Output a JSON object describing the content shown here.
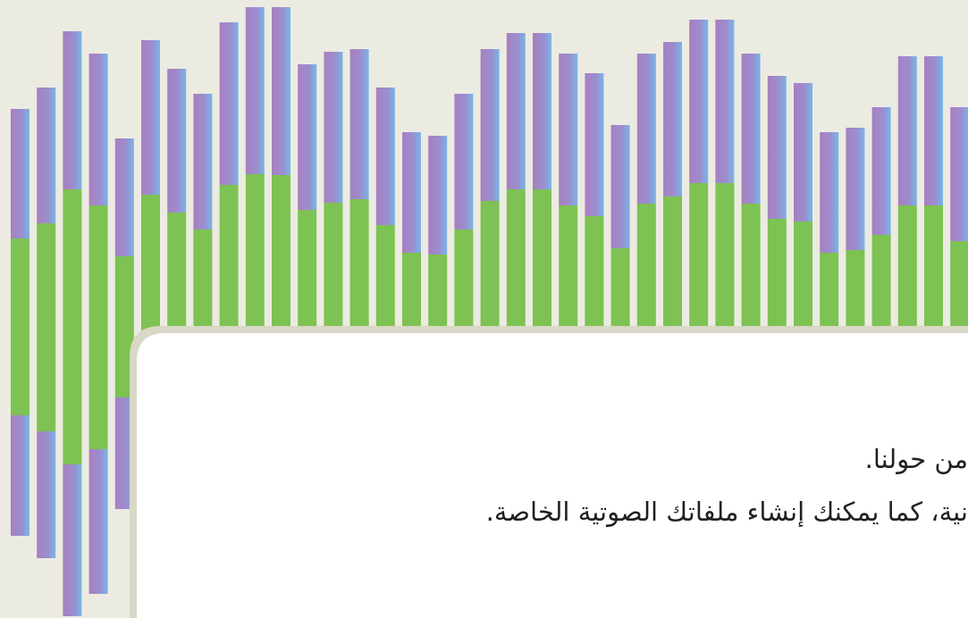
{
  "body": {
    "lines": [
      "من حولنا.",
      "نية، كما يمكنك إنشاء ملفاتك الصوتية الخاصة."
    ]
  }
}
